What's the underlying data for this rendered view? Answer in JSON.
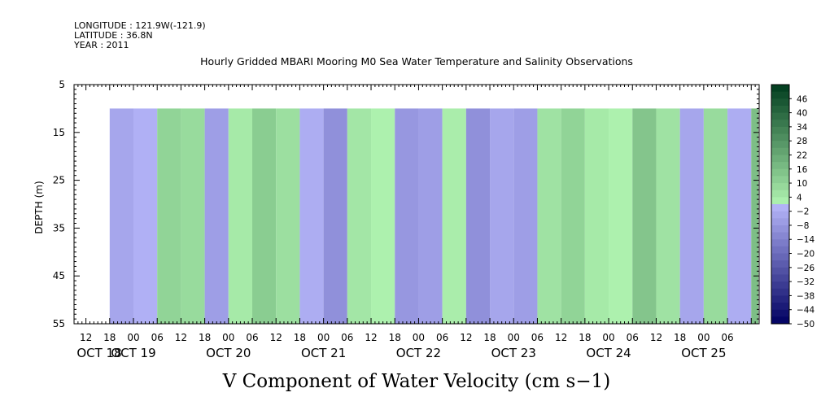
{
  "header": {
    "longitude": "LONGITUDE : 121.9W(-121.9)",
    "latitude": "LATITUDE : 36.8N",
    "year": "YEAR : 2011",
    "title": "Hourly Gridded MBARI Mooring M0 Sea Water Temperature and Salinity Observations"
  },
  "xlabel_main": "V Component of Water Velocity (cm s−1)",
  "chart_data": {
    "type": "heatmap",
    "title": "Hourly Gridded MBARI Mooring M0 Sea Water Temperature and Salinity Observations",
    "variable": "V Component of Water Velocity (cm s−1)",
    "ylabel": "DEPTH (m)",
    "y_axis": {
      "range": [
        5,
        55
      ],
      "inverted": true,
      "ticks": [
        "5",
        "15",
        "25",
        "35",
        "45",
        "55"
      ]
    },
    "x_axis": {
      "type": "time",
      "start": "2011-10-18T09:00",
      "end": "2011-10-25T14:00",
      "hour_ticks": [
        "12",
        "18",
        "00",
        "06",
        "12",
        "18",
        "00",
        "06",
        "12",
        "18",
        "00",
        "06",
        "12",
        "18",
        "00",
        "06",
        "12",
        "18",
        "00",
        "06",
        "12",
        "18",
        "00",
        "06",
        "12",
        "18",
        "00",
        "06"
      ],
      "day_labels": [
        "OCT 18",
        "OCT 19",
        "OCT 20",
        "OCT 21",
        "OCT 22",
        "OCT 23",
        "OCT 24",
        "OCT 25"
      ]
    },
    "data_time_range": [
      "2011-10-18T18:00",
      "2011-10-25T12:00"
    ],
    "data_depth_range": [
      10,
      55
    ],
    "time_bands": [
      {
        "t": "2011-10-18T18:00",
        "v": -4
      },
      {
        "t": "2011-10-19T00:00",
        "v": -1
      },
      {
        "t": "2011-10-19T06:00",
        "v": 10
      },
      {
        "t": "2011-10-19T12:00",
        "v": 8
      },
      {
        "t": "2011-10-19T18:00",
        "v": -6
      },
      {
        "t": "2011-10-20T00:00",
        "v": 4
      },
      {
        "t": "2011-10-20T06:00",
        "v": 12
      },
      {
        "t": "2011-10-20T12:00",
        "v": 7
      },
      {
        "t": "2011-10-20T18:00",
        "v": -2
      },
      {
        "t": "2011-10-21T00:00",
        "v": -10
      },
      {
        "t": "2011-10-21T06:00",
        "v": 5
      },
      {
        "t": "2011-10-21T12:00",
        "v": 2
      },
      {
        "t": "2011-10-21T18:00",
        "v": -8
      },
      {
        "t": "2011-10-22T00:00",
        "v": -6
      },
      {
        "t": "2011-10-22T06:00",
        "v": 3
      },
      {
        "t": "2011-10-22T12:00",
        "v": -10
      },
      {
        "t": "2011-10-22T18:00",
        "v": -4
      },
      {
        "t": "2011-10-23T00:00",
        "v": -6
      },
      {
        "t": "2011-10-23T06:00",
        "v": 6
      },
      {
        "t": "2011-10-23T12:00",
        "v": 10
      },
      {
        "t": "2011-10-23T18:00",
        "v": 4
      },
      {
        "t": "2011-10-24T00:00",
        "v": 2
      },
      {
        "t": "2011-10-24T06:00",
        "v": 14
      },
      {
        "t": "2011-10-24T12:00",
        "v": 6
      },
      {
        "t": "2011-10-24T18:00",
        "v": -4
      },
      {
        "t": "2011-10-25T00:00",
        "v": 8
      },
      {
        "t": "2011-10-25T06:00",
        "v": -2
      },
      {
        "t": "2011-10-25T12:00",
        "v": 16
      }
    ],
    "colorbar": {
      "labels": [
        "46",
        "40",
        "34",
        "28",
        "22",
        "16",
        "10",
        "4",
        "−2",
        "−8",
        "−14",
        "−20",
        "−26",
        "−32",
        "−38",
        "−44",
        "−50"
      ],
      "range": [
        -50,
        52
      ],
      "step": 3
    },
    "colors": {
      "neg_light": "#b4b4f8",
      "neg_dark": "#000060",
      "pos_light": "#b4f8b4",
      "pos_dark": "#003c1e",
      "background": "#ffffff"
    }
  }
}
